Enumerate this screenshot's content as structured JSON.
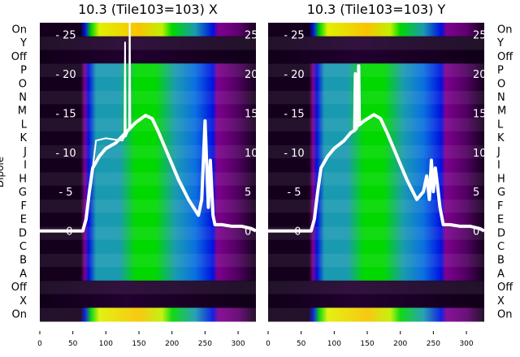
{
  "chart_data": [
    {
      "type": "heatmap",
      "title": "10.3 (Tile103=103) X",
      "ylabel": "Dipole",
      "row_labels": [
        "On",
        "Y",
        "Off",
        "P",
        "O",
        "N",
        "M",
        "L",
        "K",
        "J",
        "I",
        "H",
        "G",
        "F",
        "E",
        "D",
        "C",
        "B",
        "A",
        "Off",
        "X",
        "On"
      ],
      "x_ticks": [
        0,
        50,
        100,
        150,
        200,
        250,
        300
      ],
      "xlim": [
        0,
        327
      ],
      "overlay_ticks": [
        0,
        5,
        10,
        15,
        20,
        25
      ],
      "overlay_ylim": [
        -11.5,
        26.5
      ],
      "overlay_series": [
        {
          "name": "spectrum",
          "x": [
            0,
            65,
            70,
            75,
            80,
            90,
            100,
            115,
            130,
            145,
            160,
            170,
            180,
            195,
            210,
            225,
            240,
            245,
            250,
            255,
            258,
            262,
            265,
            275,
            290,
            305,
            320,
            327
          ],
          "y": [
            0,
            0,
            1.5,
            5,
            8,
            9.5,
            10.5,
            11.2,
            12.5,
            13.8,
            14.7,
            14.3,
            12.5,
            9.5,
            6.5,
            4,
            2,
            4,
            14,
            3,
            9,
            2,
            0.8,
            0.8,
            0.6,
            0.6,
            0.3,
            0
          ]
        },
        {
          "name": "spectrum-2",
          "x": [
            80,
            85,
            100,
            115,
            125,
            128,
            129,
            130,
            135,
            136,
            137,
            145
          ],
          "y": [
            8,
            11.5,
            11.8,
            11.6,
            11.5,
            12,
            24,
            12,
            13,
            28,
            13,
            13.8
          ]
        }
      ]
    },
    {
      "type": "heatmap",
      "title": "10.3 (Tile103=103) Y",
      "row_labels": [
        "On",
        "Y",
        "Off",
        "P",
        "O",
        "N",
        "M",
        "L",
        "K",
        "J",
        "I",
        "H",
        "G",
        "F",
        "E",
        "D",
        "C",
        "B",
        "A",
        "Off",
        "X",
        "On"
      ],
      "x_ticks": [
        0,
        50,
        100,
        150,
        200,
        250,
        300
      ],
      "xlim": [
        0,
        327
      ],
      "overlay_ticks": [
        0,
        5,
        10,
        15,
        20,
        25
      ],
      "overlay_ylim": [
        -11.5,
        26.5
      ],
      "overlay_series": [
        {
          "name": "spectrum",
          "x": [
            0,
            65,
            70,
            75,
            80,
            90,
            100,
            115,
            125,
            131,
            132,
            133,
            136,
            137,
            138,
            145,
            160,
            170,
            180,
            195,
            210,
            225,
            235,
            240,
            244,
            247,
            250,
            253,
            256,
            260,
            265,
            275,
            290,
            305,
            320,
            327
          ],
          "y": [
            0,
            0,
            1.5,
            5,
            8,
            9.5,
            10.5,
            11.5,
            12.5,
            12.8,
            20,
            13,
            13.5,
            21,
            13.5,
            14,
            14.8,
            14.3,
            12.5,
            9.5,
            6.5,
            4,
            5,
            7,
            4,
            9,
            5,
            8,
            6,
            3,
            0.8,
            0.8,
            0.6,
            0.6,
            0.3,
            0
          ]
        }
      ]
    }
  ],
  "colors": {
    "dark": "#14001c",
    "purple": "#7e0090",
    "blue": "#0010e0",
    "teal": "#1a9ab0",
    "green": "#00d800",
    "yellow": "#f0f000",
    "orange": "#f8c400",
    "line": "#ffffff"
  }
}
